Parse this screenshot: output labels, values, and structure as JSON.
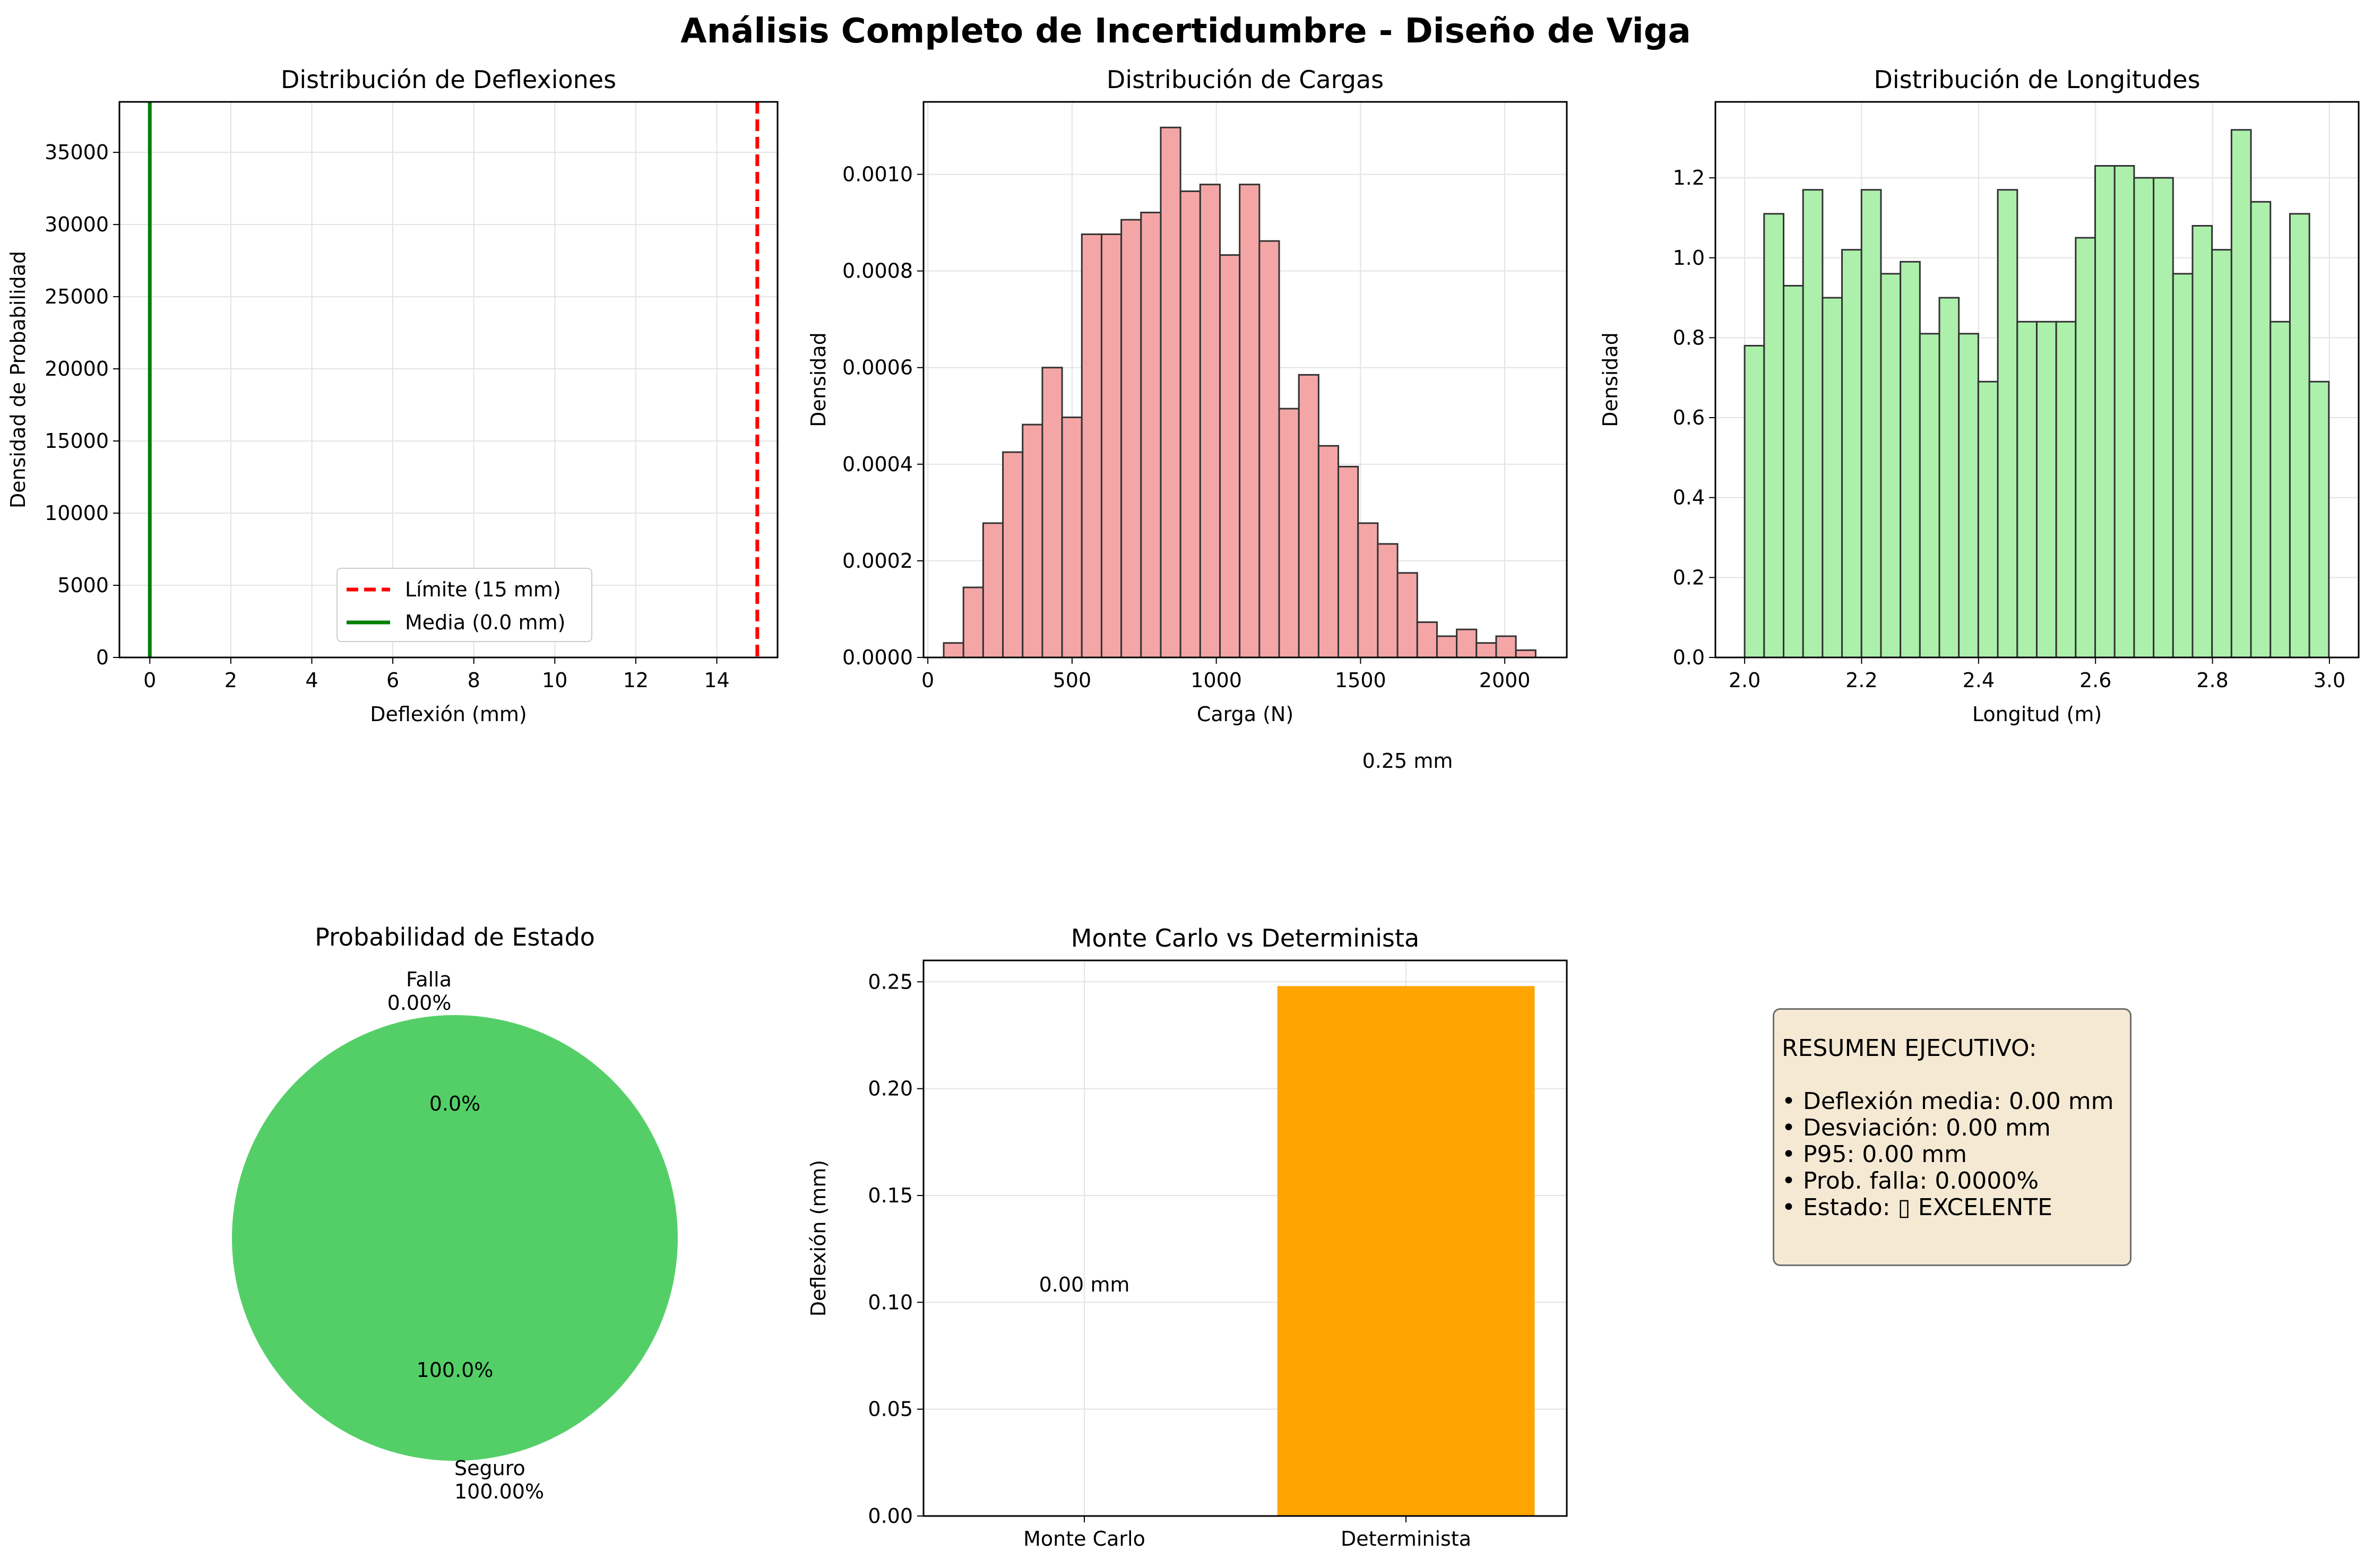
{
  "figure": {
    "suptitle": "Análisis Completo de Incertidumbre - Diseño de Viga"
  },
  "colors": {
    "red_hist": "#f4a6a6",
    "green_hist": "#acf0ac",
    "pie_green": "#54cf68",
    "orange": "#ffa500",
    "limit_red": "#ff0000",
    "mean_green": "#008000",
    "edge": "#333333",
    "grid": "#e3e3e3"
  },
  "chart_data": [
    {
      "id": "deflexiones",
      "type": "line",
      "title": "Distribución de Deflexiones",
      "xlabel": "Deflexión (mm)",
      "ylabel": "Densidad de Probabilidad",
      "xlim": [
        -0.75,
        15.5
      ],
      "ylim": [
        0,
        38500
      ],
      "xticks": [
        0,
        2,
        4,
        6,
        8,
        10,
        12,
        14
      ],
      "yticks": [
        0,
        5000,
        10000,
        15000,
        20000,
        25000,
        30000,
        35000
      ],
      "grid": true,
      "vlines": [
        {
          "name": "Límite (15 mm)",
          "x": 15,
          "color": "#ff0000",
          "style": "dashed"
        },
        {
          "name": "Media (0.0 mm)",
          "x": 0.0,
          "color": "#008000",
          "style": "solid"
        }
      ],
      "legend": {
        "position": "lower center"
      }
    },
    {
      "id": "cargas",
      "type": "bar",
      "title": "Distribución de Cargas",
      "xlabel": "Carga (N)",
      "ylabel": "Densidad",
      "xlim": [
        -15,
        2215
      ],
      "ylim": [
        0,
        0.00115
      ],
      "xticks": [
        0,
        500,
        1000,
        1500,
        2000
      ],
      "yticks": [
        0.0,
        0.0002,
        0.0004,
        0.0006,
        0.0008,
        0.001
      ],
      "ytick_labels": [
        "0.0000",
        "0.0002",
        "0.0004",
        "0.0006",
        "0.0008",
        "0.0010"
      ],
      "grid": true,
      "color": "#f4a6a6",
      "bins": {
        "start": 55,
        "width": 68.4
      },
      "values": [
        3e-05,
        0.000145,
        0.000278,
        0.000425,
        0.000482,
        0.0006,
        0.000497,
        0.000876,
        0.000876,
        0.000906,
        0.000921,
        0.001097,
        0.000965,
        0.000979,
        0.000833,
        0.000979,
        0.000862,
        0.000515,
        0.000585,
        0.000438,
        0.000395,
        0.000278,
        0.000235,
        0.000175,
        7.3e-05,
        4.4e-05,
        5.8e-05,
        3e-05,
        4.4e-05,
        1.5e-05
      ],
      "annotation": "0.25 mm"
    },
    {
      "id": "longitudes",
      "type": "bar",
      "title": "Distribución de Longitudes",
      "xlabel": "Longitud (m)",
      "ylabel": "Densidad",
      "xlim": [
        1.95,
        3.05
      ],
      "ylim": [
        0,
        1.39
      ],
      "xticks": [
        2.0,
        2.2,
        2.4,
        2.6,
        2.8,
        3.0
      ],
      "xtick_labels": [
        "2.0",
        "2.2",
        "2.4",
        "2.6",
        "2.8",
        "3.0"
      ],
      "yticks": [
        0.0,
        0.2,
        0.4,
        0.6,
        0.8,
        1.0,
        1.2
      ],
      "ytick_labels": [
        "0.0",
        "0.2",
        "0.4",
        "0.6",
        "0.8",
        "1.0",
        "1.2"
      ],
      "grid": true,
      "color": "#acf0ac",
      "bins": {
        "start": 2.0,
        "width": 0.0333
      },
      "values": [
        0.78,
        1.11,
        0.93,
        1.17,
        0.9,
        1.02,
        1.17,
        0.96,
        0.99,
        0.81,
        0.9,
        0.81,
        0.69,
        1.17,
        0.84,
        0.84,
        0.84,
        1.05,
        1.23,
        1.23,
        1.2,
        1.2,
        0.96,
        1.08,
        1.02,
        1.32,
        1.14,
        0.84,
        1.11,
        0.69
      ]
    },
    {
      "id": "estado",
      "type": "pie",
      "title": "Probabilidad de Estado",
      "color": "#54cf68",
      "slices": [
        {
          "label": "Falla\n0.00%",
          "value": 0.0,
          "pct": "0.0%"
        },
        {
          "label": "Seguro\n100.00%",
          "value": 100.0,
          "pct": "100.0%"
        }
      ]
    },
    {
      "id": "comparacion",
      "type": "bar",
      "title": "Monte Carlo vs Determinista",
      "ylabel": "Deflexión (mm)",
      "categories": [
        "Monte Carlo",
        "Determinista"
      ],
      "values": [
        0.0,
        0.248
      ],
      "value_labels": [
        "0.00 mm",
        "0.25 mm"
      ],
      "ylim": [
        0,
        0.26
      ],
      "yticks": [
        0.0,
        0.05,
        0.1,
        0.15,
        0.2,
        0.25
      ],
      "ytick_labels": [
        "0.00",
        "0.05",
        "0.10",
        "0.15",
        "0.20",
        "0.25"
      ],
      "grid": true,
      "colors": [
        "#1f77b4",
        "#ffa500"
      ]
    }
  ],
  "summary": {
    "heading": "RESUMEN EJECUTIVO:",
    "items": [
      "• Deflexión media: 0.00 mm",
      "• Desviación: 0.00 mm",
      "• P95: 0.00 mm",
      "• Prob. falla: 0.0000%",
      "• Estado: ▯ EXCELENTE"
    ]
  }
}
